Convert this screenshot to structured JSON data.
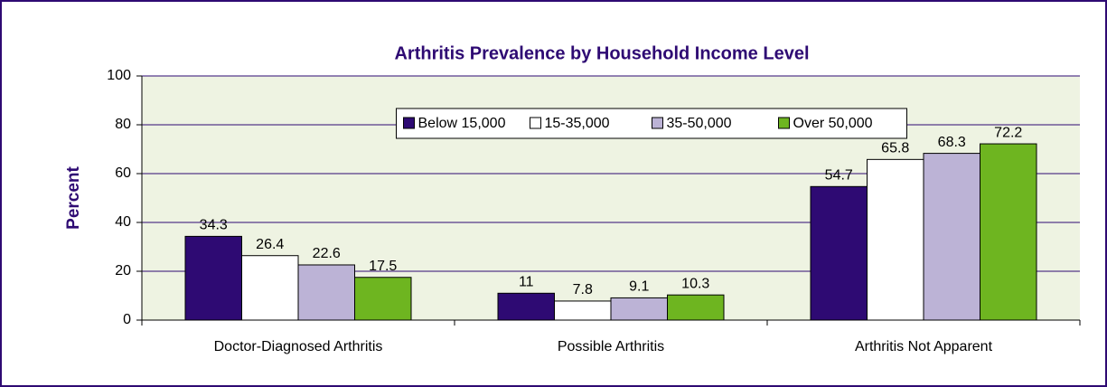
{
  "chart_data": {
    "type": "bar",
    "title": "Arthritis Prevalence by Household Income Level",
    "y_label": "Percent",
    "categories": [
      "Doctor-Diagnosed Arthritis",
      "Possible Arthritis",
      "Arthritis Not Apparent"
    ],
    "series": [
      {
        "name": "Below 15,000",
        "color": "#2e0a73",
        "values": [
          34.3,
          11,
          54.7
        ]
      },
      {
        "name": "15-35,000",
        "color": "#ffffff",
        "values": [
          26.4,
          7.8,
          65.8
        ]
      },
      {
        "name": "35-50,000",
        "color": "#bcb3d6",
        "values": [
          22.6,
          9.1,
          68.3
        ]
      },
      {
        "name": "Over 50,000",
        "color": "#6eb520",
        "values": [
          17.5,
          10.3,
          72.2
        ]
      }
    ],
    "ylim": [
      0,
      100
    ],
    "yticks": [
      0,
      20,
      40,
      60,
      80,
      100
    ],
    "grid": true,
    "legend": "top"
  }
}
